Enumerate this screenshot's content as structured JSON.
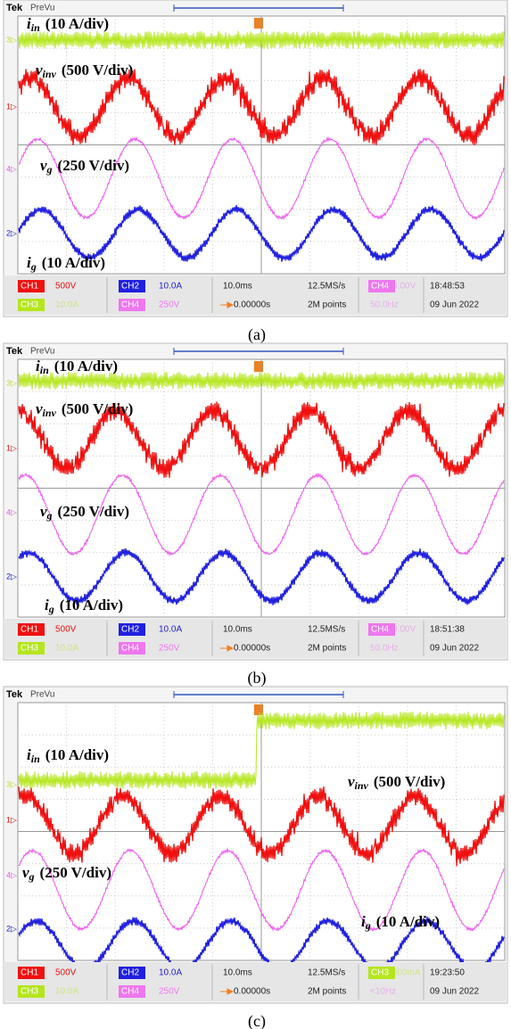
{
  "panels": [
    {
      "caption": "(a)",
      "header": {
        "brand": "Tek",
        "mode": "PreVu"
      },
      "markers": [
        "3▷",
        "1▷",
        "4▷",
        "2▷"
      ],
      "labels": [
        {
          "symbol": "i",
          "sub": "in",
          "scale": "(10 A/div)"
        },
        {
          "symbol": "v",
          "sub": "inv",
          "scale": "(500 V/div)"
        },
        {
          "symbol": "v",
          "sub": "g",
          "scale": "(250 V/div)"
        },
        {
          "symbol": "i",
          "sub": "g",
          "scale": "(10 A/div)"
        }
      ],
      "status": {
        "row1": [
          "CH1",
          "500V",
          "CH2",
          "10.0A",
          "10.0ms",
          "12.5MS/s",
          "CH4",
          "0.00V",
          "18:48:53"
        ],
        "row2": [
          "CH3",
          "10.0A",
          "CH4",
          "250V",
          "0.00000s",
          "2M points",
          "50.0Hz",
          "09 Jun 2022"
        ]
      }
    },
    {
      "caption": "(b)",
      "header": {
        "brand": "Tek",
        "mode": "PreVu"
      },
      "markers": [
        "3▷",
        "1▷",
        "4▷",
        "2▷"
      ],
      "labels": [
        {
          "symbol": "i",
          "sub": "in",
          "scale": "(10 A/div)"
        },
        {
          "symbol": "v",
          "sub": "inv",
          "scale": "(500 V/div)"
        },
        {
          "symbol": "v",
          "sub": "g",
          "scale": "(250 V/div)"
        },
        {
          "symbol": "i",
          "sub": "g",
          "scale": "(10 A/div)"
        }
      ],
      "status": {
        "row1": [
          "CH1",
          "500V",
          "CH2",
          "10.0A",
          "10.0ms",
          "12.5MS/s",
          "CH4",
          "0.00V",
          "18:51:38"
        ],
        "row2": [
          "CH3",
          "10.0A",
          "CH4",
          "250V",
          "0.00000s",
          "2M points",
          "50.0Hz",
          "09 Jun 2022"
        ]
      }
    },
    {
      "caption": "(c)",
      "header": {
        "brand": "Tek",
        "mode": "PreVu"
      },
      "markers": [
        "3▷",
        "1▷",
        "4▷",
        "2▷"
      ],
      "labels": [
        {
          "symbol": "i",
          "sub": "in",
          "scale": "(10 A/div)"
        },
        {
          "symbol": "v",
          "sub": "inv",
          "scale": "(500 V/div)"
        },
        {
          "symbol": "v",
          "sub": "g",
          "scale": "(250 V/div)"
        },
        {
          "symbol": "i",
          "sub": "g",
          "scale": "(10 A/div)"
        }
      ],
      "status": {
        "row1": [
          "CH1",
          "500V",
          "CH2",
          "10.0A",
          "10.0ms",
          "12.5MS/s",
          "CH3",
          "500mA",
          "19:23:50"
        ],
        "row2": [
          "CH3",
          "10.0A",
          "CH4",
          "250V",
          "0.00000s",
          "2M points",
          "<10Hz",
          "09 Jun 2022"
        ]
      }
    }
  ]
}
